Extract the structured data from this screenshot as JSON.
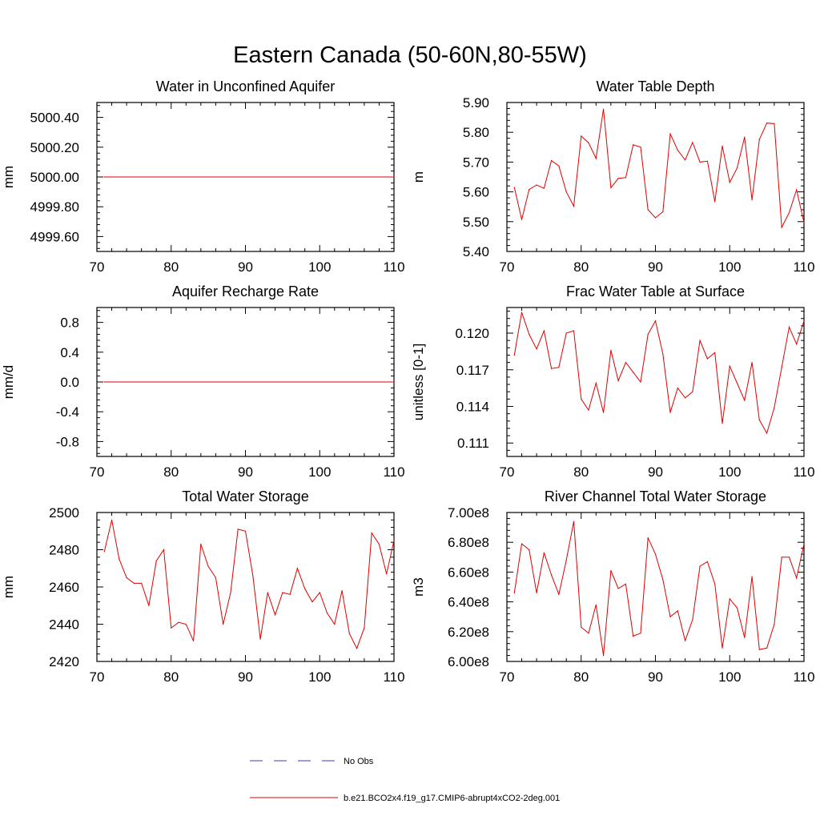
{
  "figure": {
    "title": "Eastern Canada (50-60N,80-55W)"
  },
  "legend": [
    {
      "label": "No Obs",
      "color": "#3b3bb8",
      "style": "dashed"
    },
    {
      "label": "b.e21.BCO2x4.f19_g17.CMIP6-abrupt4xCO2-2deg.001",
      "color": "#e00000",
      "style": "solid"
    }
  ],
  "chart_data": [
    {
      "type": "line",
      "title": "Water in Unconfined Aquifer",
      "ylabel": "mm",
      "xlim": [
        70,
        110
      ],
      "ylim": [
        4999.5,
        5000.5
      ],
      "xticks": [
        70,
        80,
        90,
        100,
        110
      ],
      "xtick_labels": [
        "70",
        "80",
        "90",
        "100",
        "110"
      ],
      "yticks": [
        4999.6,
        4999.8,
        5000.0,
        5000.2,
        5000.4
      ],
      "ytick_labels": [
        "4999.60",
        "4999.80",
        "5000.00",
        "5000.20",
        "5000.40"
      ],
      "series": [
        {
          "color": "#e00000",
          "x": [
            71,
            110
          ],
          "values": [
            5000.0,
            5000.0
          ]
        }
      ]
    },
    {
      "type": "line",
      "title": "Water Table Depth",
      "ylabel": "m",
      "xlim": [
        70,
        110
      ],
      "ylim": [
        5.4,
        5.9
      ],
      "xticks": [
        70,
        80,
        90,
        100,
        110
      ],
      "xtick_labels": [
        "70",
        "80",
        "90",
        "100",
        "110"
      ],
      "yticks": [
        5.4,
        5.5,
        5.6,
        5.7,
        5.8,
        5.9
      ],
      "ytick_labels": [
        "5.40",
        "5.50",
        "5.60",
        "5.70",
        "5.80",
        "5.90"
      ],
      "series": [
        {
          "color": "#e00000",
          "x": [
            71,
            72,
            73,
            74,
            75,
            76,
            77,
            78,
            79,
            80,
            81,
            82,
            83,
            84,
            85,
            86,
            87,
            88,
            89,
            90,
            91,
            92,
            93,
            94,
            95,
            96,
            97,
            98,
            99,
            100,
            101,
            102,
            103,
            104,
            105,
            106,
            107,
            108,
            109,
            110
          ],
          "values": [
            5.615,
            5.507,
            5.608,
            5.623,
            5.612,
            5.705,
            5.687,
            5.6,
            5.552,
            5.787,
            5.765,
            5.712,
            5.878,
            5.614,
            5.645,
            5.648,
            5.758,
            5.75,
            5.54,
            5.513,
            5.533,
            5.795,
            5.74,
            5.707,
            5.766,
            5.7,
            5.703,
            5.567,
            5.754,
            5.632,
            5.68,
            5.784,
            5.573,
            5.776,
            5.831,
            5.829,
            5.481,
            5.53,
            5.607,
            5.497
          ]
        }
      ]
    },
    {
      "type": "line",
      "title": "Aquifer Recharge Rate",
      "ylabel": "mm/d",
      "xlim": [
        70,
        110
      ],
      "ylim": [
        -1.0,
        1.0
      ],
      "xticks": [
        70,
        80,
        90,
        100,
        110
      ],
      "xtick_labels": [
        "70",
        "80",
        "90",
        "100",
        "110"
      ],
      "yticks": [
        -0.8,
        -0.4,
        0.0,
        0.4,
        0.8
      ],
      "ytick_labels": [
        "-0.8",
        "-0.4",
        "0.0",
        "0.4",
        "0.8"
      ],
      "series": [
        {
          "color": "#e00000",
          "x": [
            71,
            110
          ],
          "values": [
            0.0,
            0.0
          ]
        }
      ]
    },
    {
      "type": "line",
      "title": "Frac Water Table at Surface",
      "ylabel": "unitless [0-1]",
      "xlim": [
        70,
        110
      ],
      "ylim": [
        0.1099,
        0.1221
      ],
      "xticks": [
        70,
        80,
        90,
        100,
        110
      ],
      "xtick_labels": [
        "70",
        "80",
        "90",
        "100",
        "110"
      ],
      "yticks": [
        0.111,
        0.114,
        0.117,
        0.12
      ],
      "ytick_labels": [
        "0.111",
        "0.114",
        "0.117",
        "0.120"
      ],
      "series": [
        {
          "color": "#e00000",
          "x": [
            71,
            72,
            73,
            74,
            75,
            76,
            77,
            78,
            79,
            80,
            81,
            82,
            83,
            84,
            85,
            86,
            87,
            88,
            89,
            90,
            91,
            92,
            93,
            94,
            95,
            96,
            97,
            98,
            99,
            100,
            101,
            102,
            103,
            104,
            105,
            106,
            107,
            108,
            109,
            110
          ],
          "values": [
            0.1182,
            0.1217,
            0.1199,
            0.1187,
            0.1202,
            0.1171,
            0.1172,
            0.12,
            0.1202,
            0.1146,
            0.1137,
            0.1159,
            0.1135,
            0.1186,
            0.1161,
            0.1176,
            0.1168,
            0.116,
            0.1199,
            0.121,
            0.1183,
            0.1135,
            0.1155,
            0.1147,
            0.1152,
            0.1194,
            0.1179,
            0.1184,
            0.1126,
            0.1173,
            0.1159,
            0.1145,
            0.1176,
            0.1129,
            0.1118,
            0.1139,
            0.1172,
            0.1205,
            0.1191,
            0.121
          ]
        }
      ]
    },
    {
      "type": "line",
      "title": "Total Water Storage",
      "ylabel": "mm",
      "xlim": [
        70,
        110
      ],
      "ylim": [
        2420,
        2500
      ],
      "xticks": [
        70,
        80,
        90,
        100,
        110
      ],
      "xtick_labels": [
        "70",
        "80",
        "90",
        "100",
        "110"
      ],
      "yticks": [
        2420,
        2440,
        2460,
        2480,
        2500
      ],
      "ytick_labels": [
        "2420",
        "2440",
        "2460",
        "2480",
        "2500"
      ],
      "series": [
        {
          "color": "#e00000",
          "x": [
            71,
            72,
            73,
            74,
            75,
            76,
            77,
            78,
            79,
            80,
            81,
            82,
            83,
            84,
            85,
            86,
            87,
            88,
            89,
            90,
            91,
            92,
            93,
            94,
            95,
            96,
            97,
            98,
            99,
            100,
            101,
            102,
            103,
            104,
            105,
            106,
            107,
            108,
            109,
            110
          ],
          "values": [
            2479,
            2496,
            2475,
            2465,
            2462,
            2462,
            2450,
            2474,
            2480,
            2438,
            2441,
            2440,
            2431,
            2483,
            2471,
            2465,
            2440,
            2457,
            2491,
            2490,
            2466,
            2432,
            2457,
            2445,
            2457,
            2456,
            2470,
            2459,
            2452,
            2457,
            2446,
            2440,
            2458,
            2435,
            2427,
            2438,
            2489,
            2483,
            2467,
            2485
          ]
        }
      ]
    },
    {
      "type": "line",
      "title": "River Channel Total Water Storage",
      "ylabel": "m3",
      "xlim": [
        70,
        110
      ],
      "ylim": [
        600000000,
        700000000
      ],
      "xticks": [
        70,
        80,
        90,
        100,
        110
      ],
      "xtick_labels": [
        "70",
        "80",
        "90",
        "100",
        "110"
      ],
      "yticks": [
        600000000,
        620000000,
        640000000,
        660000000,
        680000000,
        700000000
      ],
      "ytick_labels": [
        "6.00e8",
        "6.20e8",
        "6.40e8",
        "6.60e8",
        "6.80e8",
        "7.00e8"
      ],
      "series": [
        {
          "color": "#e00000",
          "x": [
            71,
            72,
            73,
            74,
            75,
            76,
            77,
            78,
            79,
            80,
            81,
            82,
            83,
            84,
            85,
            86,
            87,
            88,
            89,
            90,
            91,
            92,
            93,
            94,
            95,
            96,
            97,
            98,
            99,
            100,
            101,
            102,
            103,
            104,
            105,
            106,
            107,
            108,
            109,
            110
          ],
          "values": [
            646000000,
            679000000,
            675000000,
            646000000,
            673000000,
            658000000,
            645000000,
            668000000,
            694000000,
            623000000,
            619000000,
            638000000,
            604000000,
            661000000,
            649000000,
            652000000,
            617000000,
            619000000,
            683000000,
            672000000,
            655000000,
            630000000,
            634000000,
            614000000,
            628000000,
            664000000,
            667000000,
            652000000,
            609000000,
            642000000,
            636000000,
            616000000,
            657000000,
            608000000,
            609000000,
            625000000,
            670000000,
            670000000,
            656000000,
            679000000
          ]
        }
      ]
    }
  ]
}
